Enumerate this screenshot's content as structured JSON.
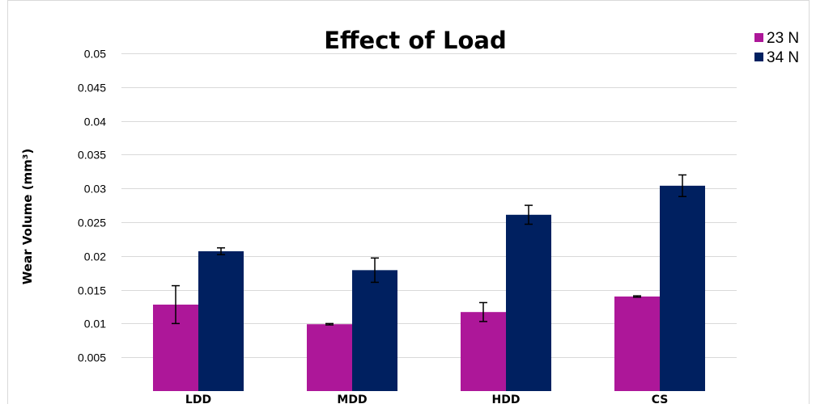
{
  "chart_data": {
    "type": "bar",
    "title": "Effect of Load",
    "xlabel": "",
    "ylabel": "Wear Volume (mm³)",
    "ylim": [
      0,
      0.05
    ],
    "yticks": [
      "0.005",
      "0.01",
      "0.015",
      "0.02",
      "0.025",
      "0.03",
      "0.035",
      "0.04",
      "0.045",
      "0.05"
    ],
    "ytick_values": [
      0.005,
      0.01,
      0.015,
      0.02,
      0.025,
      0.03,
      0.035,
      0.04,
      0.045,
      0.05
    ],
    "categories": [
      "LDD",
      "MDD",
      "HDD",
      "CS"
    ],
    "series": [
      {
        "name": "23 N",
        "color": "#ad1799",
        "values": [
          0.0128,
          0.0099,
          0.0117,
          0.014
        ],
        "error": [
          0.0028,
          0.0001,
          0.0014,
          0.0001
        ]
      },
      {
        "name": "34 N",
        "color": "#002060",
        "values": [
          0.0207,
          0.0179,
          0.0261,
          0.0304
        ],
        "error": [
          0.0005,
          0.0018,
          0.0014,
          0.0016
        ]
      }
    ],
    "grid": true,
    "legend_position": "top-right"
  }
}
